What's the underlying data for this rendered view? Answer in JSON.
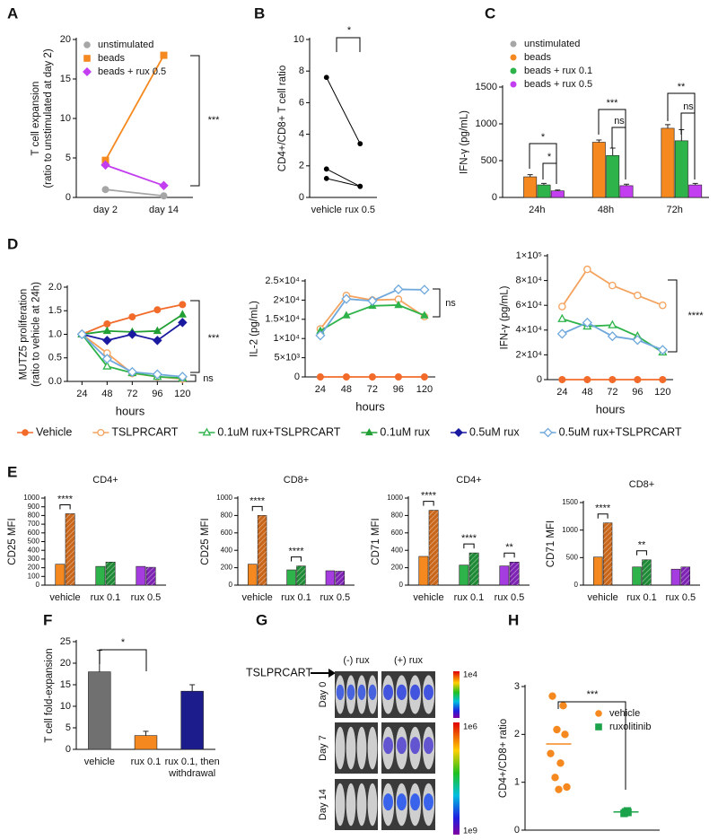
{
  "chart_data": [
    {
      "panel": "A",
      "type": "line",
      "y_label": [
        "T cell expansion",
        "(ratio to unstimulated at day 2)"
      ],
      "categories": [
        "day 2",
        "day 14"
      ],
      "ylim": [
        0,
        20
      ],
      "yticks": [
        0,
        5,
        10,
        15,
        20
      ],
      "legend": "upper left",
      "series": [
        {
          "name": "unstimulated",
          "color": "#a6a6a6",
          "marker": "circle",
          "values": [
            1.0,
            0.2
          ]
        },
        {
          "name": "beads",
          "color": "#f5891f",
          "marker": "square",
          "values": [
            4.7,
            18
          ]
        },
        {
          "name": "beads + rux 0.5",
          "color": "#c23ef0",
          "marker": "diamond",
          "values": [
            4.1,
            1.5
          ]
        }
      ],
      "annotations": [
        "***"
      ]
    },
    {
      "panel": "B",
      "type": "line",
      "y_label": "CD4+/CD8+ T cell ratio",
      "categories": [
        "vehicle",
        "rux 0.5"
      ],
      "ylim": [
        0,
        10
      ],
      "yticks": [
        0,
        2,
        4,
        6,
        8,
        10
      ],
      "series": [
        {
          "color": "#000000",
          "marker": "circle",
          "values": [
            7.6,
            3.4
          ]
        },
        {
          "color": "#000000",
          "marker": "circle",
          "values": [
            1.8,
            0.7
          ]
        },
        {
          "color": "#000000",
          "marker": "circle",
          "values": [
            1.2,
            0.7
          ]
        }
      ],
      "annotations": [
        "*"
      ]
    },
    {
      "panel": "C",
      "type": "bar",
      "y_label": "IFN-γ (pg/mL)",
      "categories": [
        "24h",
        "48h",
        "72h"
      ],
      "ylim": [
        0,
        1500
      ],
      "yticks": [
        0,
        500,
        1000,
        1500
      ],
      "legend": "above",
      "series": [
        {
          "name": "unstimulated",
          "color": "#a6a6a6",
          "values": [
            0,
            0,
            0
          ]
        },
        {
          "name": "beads",
          "color": "#f5891f",
          "values": [
            280,
            750,
            940
          ],
          "errors": [
            30,
            30,
            50
          ]
        },
        {
          "name": "beads + rux 0.1",
          "color": "#2eb34a",
          "values": [
            170,
            570,
            770
          ],
          "errors": [
            20,
            100,
            150
          ]
        },
        {
          "name": "beads + rux 0.5",
          "color": "#c23ef0",
          "values": [
            90,
            160,
            170
          ],
          "errors": [
            10,
            20,
            20
          ]
        }
      ],
      "annotations": [
        "*",
        "*",
        "***",
        "ns",
        "**",
        "ns"
      ]
    },
    {
      "panel": "D",
      "type": "line",
      "y_label": [
        "MUTZ5 proliferation",
        "(ratio to vehicle at 24h)"
      ],
      "x_label": "hours",
      "x": [
        24,
        48,
        72,
        96,
        120
      ],
      "xlim": [
        10,
        130
      ],
      "xticks": [
        24,
        48,
        72,
        96,
        120
      ],
      "ylim": [
        0,
        2
      ],
      "yticks": [
        {
          "value": 0,
          "label": "0.0"
        },
        {
          "value": 0.5,
          "label": "0.5"
        },
        {
          "value": 1,
          "label": "1.0"
        },
        {
          "value": 1.5,
          "label": "1.5"
        },
        {
          "value": 2,
          "label": "2.0"
        }
      ],
      "legend": "below",
      "series": [
        {
          "name": "Vehicle",
          "color": "#f26b2a",
          "marker": "circle",
          "values": [
            1,
            1.22,
            1.37,
            1.52,
            1.63
          ]
        },
        {
          "name": "TSLPRCART",
          "color": "#f5a25d",
          "marker": "circle",
          "open": true,
          "values": [
            1,
            0.6,
            0.17,
            0.1,
            0.05
          ]
        },
        {
          "name": "0.1uM rux+TSLPRCART",
          "color": "#2eb34a",
          "marker": "triangle",
          "open": true,
          "values": [
            1,
            0.32,
            0.18,
            0.1,
            0.07
          ]
        },
        {
          "name": "0.1uM rux",
          "color": "#22a035",
          "marker": "triangle",
          "values": [
            1,
            1.07,
            1.05,
            1.07,
            1.42
          ]
        },
        {
          "name": "0.5uM rux",
          "color": "#1a1aa0",
          "marker": "diamond",
          "values": [
            1,
            0.87,
            1.0,
            0.87,
            1.25
          ]
        },
        {
          "name": "0.5uM rux+TSLPRCART",
          "color": "#6fa8dc",
          "marker": "diamond",
          "open": true,
          "values": [
            1,
            0.48,
            0.2,
            0.15,
            0.1
          ]
        }
      ],
      "annotations": [
        "***",
        "ns"
      ]
    },
    {
      "type": "line",
      "y_label": "IL-2 (pg/mL)",
      "x_label": "hours",
      "x": [
        24,
        48,
        72,
        96,
        120
      ],
      "xlim": [
        10,
        130
      ],
      "xticks": [
        24,
        48,
        72,
        96,
        120
      ],
      "ylim": [
        0,
        25000
      ],
      "yticks": [
        0,
        {
          "value": 5000,
          "label": "5×10³"
        },
        {
          "value": 10000,
          "label": "1×10⁴"
        },
        {
          "value": 15000,
          "label": "1.5×10⁴"
        },
        {
          "value": 20000,
          "label": "2×10⁴"
        },
        {
          "value": 25000,
          "label": "2.5×10⁴"
        }
      ],
      "series": [
        {
          "color": "#f26b2a",
          "marker": "circle",
          "values": [
            0,
            0,
            0,
            0,
            0
          ]
        },
        {
          "color": "#f5a25d",
          "marker": "circle",
          "open": true,
          "values": [
            12500,
            21200,
            20000,
            20200,
            15700
          ]
        },
        {
          "color": "#2eb34a",
          "marker": "triangle",
          "values": [
            12000,
            16000,
            18500,
            18700,
            16000
          ]
        },
        {
          "color": "#6fa8dc",
          "marker": "diamond",
          "open": true,
          "values": [
            10800,
            20300,
            19800,
            22800,
            22700
          ]
        }
      ],
      "annotations": [
        "ns"
      ]
    },
    {
      "type": "line",
      "y_label": "IFN-γ (pg/mL)",
      "x_label": "hours",
      "x": [
        24,
        48,
        72,
        96,
        120
      ],
      "xlim": [
        10,
        130
      ],
      "xticks": [
        24,
        48,
        72,
        96,
        120
      ],
      "ylim": [
        0,
        100000
      ],
      "yticks": [
        0,
        {
          "value": 20000,
          "label": "2×10⁴"
        },
        {
          "value": 40000,
          "label": "4×10⁴"
        },
        {
          "value": 60000,
          "label": "6×10⁴"
        },
        {
          "value": 80000,
          "label": "8×10⁴"
        },
        {
          "value": 100000,
          "label": "1×10⁵"
        }
      ],
      "series": [
        {
          "color": "#f26b2a",
          "marker": "circle",
          "values": [
            0,
            0,
            0,
            0,
            0
          ]
        },
        {
          "color": "#f5a25d",
          "marker": "circle",
          "open": true,
          "values": [
            59000,
            89000,
            76000,
            68000,
            60000
          ]
        },
        {
          "color": "#2eb34a",
          "marker": "triangle",
          "open": true,
          "values": [
            49000,
            43000,
            44000,
            35000,
            22000
          ]
        },
        {
          "color": "#6fa8dc",
          "marker": "diamond",
          "open": true,
          "values": [
            37000,
            46000,
            35000,
            32000,
            24000
          ]
        }
      ],
      "annotations": [
        "****"
      ]
    },
    {
      "panel": "E",
      "type": "bar",
      "title": "CD4+",
      "y_label": "CD25 MFI",
      "categories": [
        "vehicle",
        "rux 0.1",
        "rux 0.5"
      ],
      "ylim": [
        0,
        1000
      ],
      "yticks": [
        0,
        100,
        200,
        300,
        400,
        500,
        600,
        700,
        800,
        900,
        1000
      ],
      "series": [
        {
          "colors": [
            "#f5891f",
            "#2eb34a",
            "#a43ce0"
          ],
          "values": [
            240,
            215,
            215
          ]
        },
        {
          "colors": [
            "#c9661a",
            "#1f8a36",
            "#7d22b3"
          ],
          "hatch": true,
          "values": [
            820,
            265,
            205
          ]
        }
      ],
      "annotations": [
        "****"
      ]
    },
    {
      "type": "bar",
      "title": "CD8+",
      "y_label": "CD25 MFI",
      "categories": [
        "vehicle",
        "rux 0.1",
        "rux 0.5"
      ],
      "ylim": [
        0,
        1000
      ],
      "yticks": [
        0,
        200,
        400,
        600,
        800,
        1000
      ],
      "series": [
        {
          "colors": [
            "#f5891f",
            "#2eb34a",
            "#a43ce0"
          ],
          "values": [
            240,
            175,
            165
          ]
        },
        {
          "colors": [
            "#c9661a",
            "#1f8a36",
            "#7d22b3"
          ],
          "hatch": true,
          "values": [
            800,
            220,
            160
          ]
        }
      ],
      "annotations": [
        "****",
        "****"
      ]
    },
    {
      "type": "bar",
      "title": "CD4+",
      "y_label": "CD71 MFI",
      "categories": [
        "vehicle",
        "rux 0.1",
        "rux 0.5"
      ],
      "ylim": [
        0,
        1000
      ],
      "yticks": [
        0,
        200,
        400,
        600,
        800,
        1000
      ],
      "series": [
        {
          "colors": [
            "#f5891f",
            "#2eb34a",
            "#a43ce0"
          ],
          "values": [
            330,
            230,
            220
          ]
        },
        {
          "colors": [
            "#c9661a",
            "#1f8a36",
            "#7d22b3"
          ],
          "hatch": true,
          "values": [
            860,
            370,
            265
          ]
        }
      ],
      "annotations": [
        "****",
        "****",
        "**"
      ]
    },
    {
      "type": "bar",
      "title": "CD8+",
      "y_label": "CD71 MFI",
      "categories": [
        "vehicle",
        "rux 0.1",
        "rux 0.5"
      ],
      "ylim": [
        0,
        1500
      ],
      "yticks": [
        0,
        500,
        1000,
        1500
      ],
      "series": [
        {
          "colors": [
            "#f5891f",
            "#2eb34a",
            "#a43ce0"
          ],
          "values": [
            510,
            330,
            290
          ]
        },
        {
          "colors": [
            "#c9661a",
            "#1f8a36",
            "#7d22b3"
          ],
          "hatch": true,
          "values": [
            1130,
            460,
            330
          ]
        }
      ],
      "annotations": [
        "****",
        "**"
      ]
    },
    {
      "panel": "F",
      "type": "bar",
      "y_label": "T cell fold-expansion",
      "categories": [
        "vehicle",
        "rux 0.1",
        [
          "rux 0.1, then",
          "withdrawal"
        ]
      ],
      "ylim": [
        0,
        25
      ],
      "yticks": [
        0,
        5,
        10,
        15,
        20,
        25
      ],
      "series": [
        {
          "colors": [
            "#707070",
            "#f5891f",
            "#1c1c8c"
          ],
          "values": [
            18,
            3.2,
            13.5
          ],
          "errors": [
            5,
            1,
            1.5
          ]
        }
      ],
      "annotations": [
        "*"
      ]
    },
    {
      "panel": "H",
      "type": "strip",
      "y_label": "CD4+/CD8+ ratio",
      "ylim": [
        0,
        3
      ],
      "yticks": [
        0,
        1,
        2,
        3
      ],
      "legend": "upper right",
      "series": [
        {
          "name": "vehicle",
          "color": "#f5891f",
          "marker": "circle",
          "values": [
            2.8,
            2.6,
            2.1,
            2.0,
            1.6,
            1.4,
            1.1,
            0.9,
            0.85
          ],
          "mean": 1.8
        },
        {
          "name": "ruxolitinib",
          "color": "#1aa34a",
          "marker": "square",
          "values": [
            0.35,
            0.4,
            0.38,
            0.37
          ],
          "mean": 0.38
        }
      ],
      "annotations": [
        "***"
      ]
    }
  ],
  "image_panel": {
    "panel": "G",
    "arrow_label": "TSLPRCART",
    "columns": [
      "(-) rux",
      "(+) rux"
    ],
    "rows": [
      "Day 0",
      "Day 7",
      "Day 14"
    ],
    "scale_labels": [
      "1e4",
      "1e6",
      "1e9"
    ]
  }
}
